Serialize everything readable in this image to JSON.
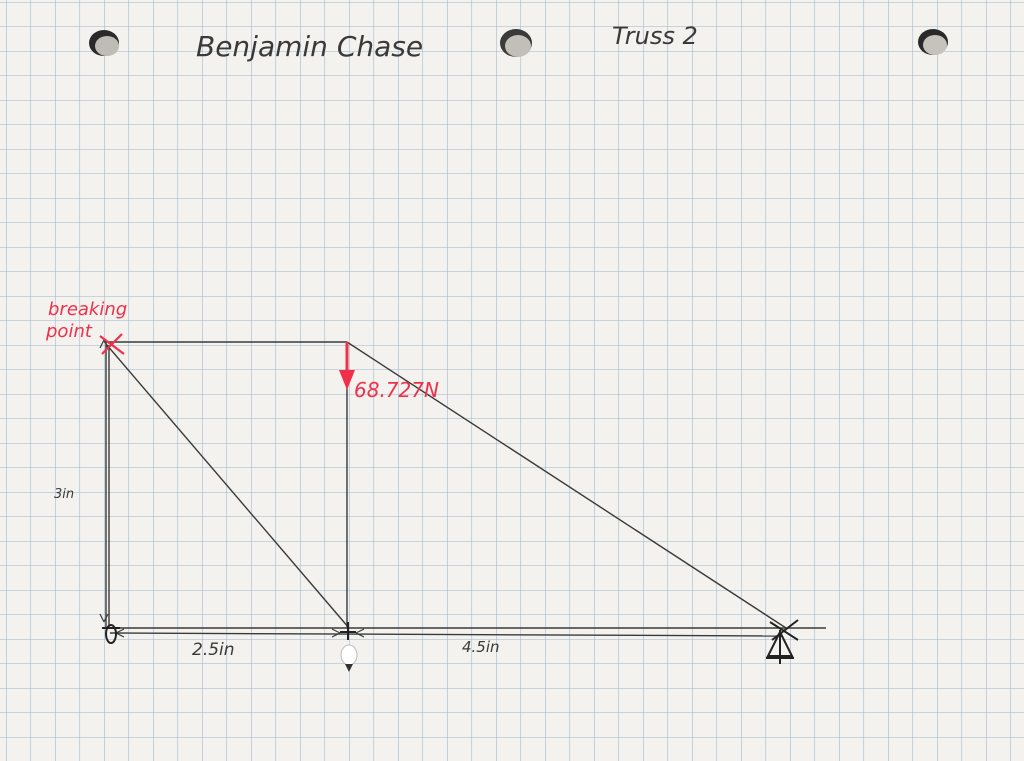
{
  "header": {
    "author": "Benjamin Chase",
    "title": "Truss 2"
  },
  "labels": {
    "breaking": "breaking",
    "point": "point",
    "load": "68.727N",
    "height": "3in",
    "span_left": "2.5in",
    "span_right": "4.5in"
  },
  "colors": {
    "paper": "#f3f2ee",
    "grid": "#9fb4c9",
    "pencil": "#3a3a3a",
    "red_ink": "#f0304a"
  },
  "icons": {
    "hole": "punch-hole-icon",
    "load_arrow": "arrow-down-icon",
    "break_mark": "x-mark-icon",
    "pin_support": "pin-support-icon",
    "roller_support": "roller-support-icon"
  }
}
